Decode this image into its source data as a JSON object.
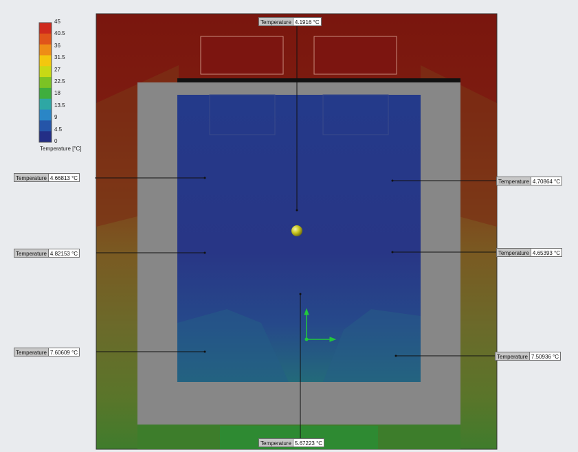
{
  "legend": {
    "title": "Temperature [°C]",
    "ticks": [
      "45",
      "40.5",
      "36",
      "31.5",
      "27",
      "22.5",
      "18",
      "13.5",
      "9",
      "4.5",
      "0"
    ],
    "colors": [
      "#cf2a1d",
      "#e0541a",
      "#ee8d16",
      "#f3c70e",
      "#c8d915",
      "#7cc324",
      "#3fae3e",
      "#2ea7a4",
      "#2a86c6",
      "#2555a8",
      "#232e86"
    ]
  },
  "colors": {
    "hot_zone": "#7d1a10",
    "warm_zone": "#6f6a2c",
    "green_zone": "#3f7a2a",
    "interior": "#2a3a88",
    "wall": "#888888",
    "sensor": "#d5d31c",
    "axis": "#22c93c"
  },
  "probes": [
    {
      "name": "probe-top",
      "label": "Temperature",
      "value": "4.1916 °C"
    },
    {
      "name": "probe-left-upper",
      "label": "Temperature",
      "value": "4.66813 °C"
    },
    {
      "name": "probe-right-upper",
      "label": "Temperature",
      "value": "4.70864 °C"
    },
    {
      "name": "probe-left-middle",
      "label": "Temperature",
      "value": "4.82153 °C"
    },
    {
      "name": "probe-right-middle",
      "label": "Temperature",
      "value": "4.65393 °C"
    },
    {
      "name": "probe-left-lower",
      "label": "Temperature",
      "value": "7.60609 °C"
    },
    {
      "name": "probe-right-lower",
      "label": "Temperature",
      "value": "7.50936 °C"
    },
    {
      "name": "probe-bottom",
      "label": "Temperature",
      "value": "5.67223 °C"
    }
  ]
}
